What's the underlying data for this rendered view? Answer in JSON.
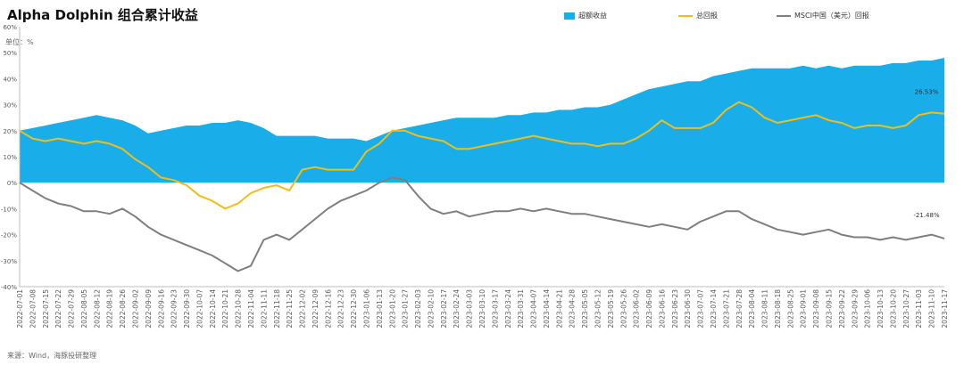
{
  "title": "Alpha Dolphin 组合累计收益",
  "unit": "单位：%",
  "source": "来源：Wind，海豚投研整理",
  "colors": {
    "excess": "#19AEEA",
    "total": "#F2BE14",
    "msci": "#7F7F7F",
    "axis": "#BFBFBF",
    "text": "#595959"
  },
  "chart_data": {
    "type": "area",
    "xlabel": "",
    "ylabel": "",
    "ylim": [
      -40,
      60
    ],
    "y_ticks": [
      -40,
      -30,
      -20,
      -10,
      0,
      10,
      20,
      30,
      40,
      50,
      60
    ],
    "y_tick_labels": [
      "-40%",
      "-30%",
      "-20%",
      "-10%",
      "0%",
      "10%",
      "20%",
      "30%",
      "40%",
      "50%",
      "60%"
    ],
    "x_labels": [
      "2022-07-01",
      "2022-07-08",
      "2022-07-15",
      "2022-07-22",
      "2022-07-29",
      "2022-08-05",
      "2022-08-12",
      "2022-08-19",
      "2022-08-26",
      "2022-09-02",
      "2022-09-09",
      "2022-09-16",
      "2022-09-23",
      "2022-09-30",
      "2022-10-07",
      "2022-10-14",
      "2022-10-21",
      "2022-10-28",
      "2022-11-04",
      "2022-11-11",
      "2022-11-18",
      "2022-11-25",
      "2022-12-02",
      "2022-12-09",
      "2022-12-16",
      "2022-12-23",
      "2022-12-30",
      "2023-01-06",
      "2023-01-13",
      "2023-01-20",
      "2023-01-27",
      "2023-02-03",
      "2023-02-10",
      "2023-02-17",
      "2023-02-24",
      "2023-03-03",
      "2023-03-10",
      "2023-03-17",
      "2023-03-24",
      "2023-03-31",
      "2023-04-07",
      "2023-04-14",
      "2023-04-21",
      "2023-04-28",
      "2023-05-05",
      "2023-05-12",
      "2023-05-19",
      "2023-05-26",
      "2023-06-02",
      "2023-06-09",
      "2023-06-16",
      "2023-06-23",
      "2023-06-30",
      "2023-07-07",
      "2023-07-14",
      "2023-07-21",
      "2023-07-28",
      "2023-08-04",
      "2023-08-11",
      "2023-08-18",
      "2023-08-25",
      "2023-09-01",
      "2023-09-08",
      "2023-09-15",
      "2023-09-22",
      "2023-09-29",
      "2023-10-06",
      "2023-10-13",
      "2023-10-20",
      "2023-10-27",
      "2023-11-03",
      "2023-11-10",
      "2023-11-17"
    ],
    "series": [
      {
        "name": "超额收益",
        "type": "area",
        "values": [
          20,
          21,
          22,
          23,
          24,
          25,
          26,
          25,
          24,
          22,
          19,
          20,
          21,
          22,
          22,
          23,
          23,
          24,
          23,
          21,
          18,
          18,
          18,
          18,
          17,
          17,
          17,
          16,
          18,
          20,
          21,
          22,
          23,
          24,
          25,
          25,
          25,
          25,
          26,
          26,
          27,
          27,
          28,
          28,
          29,
          29,
          30,
          32,
          34,
          36,
          37,
          38,
          39,
          39,
          41,
          42,
          43,
          44,
          44,
          44,
          44,
          45,
          44,
          45,
          44,
          45,
          45,
          45,
          46,
          46,
          47,
          47,
          48
        ]
      },
      {
        "name": "总回报",
        "type": "line",
        "values": [
          20,
          17,
          16,
          17,
          16,
          15,
          16,
          15,
          13,
          9,
          6,
          2,
          1,
          -1,
          -5,
          -7,
          -10,
          -8,
          -4,
          -2,
          -1,
          -3,
          5,
          6,
          5,
          5,
          5,
          12,
          15,
          20,
          20,
          18,
          17,
          16,
          13,
          13,
          14,
          15,
          16,
          17,
          18,
          17,
          16,
          15,
          15,
          14,
          15,
          15,
          17,
          20,
          24,
          21,
          21,
          21,
          23,
          28,
          31,
          29,
          25,
          23,
          24,
          25,
          26,
          24,
          23,
          21,
          22,
          22,
          21,
          22,
          26,
          27,
          26.53
        ]
      },
      {
        "name": "MSCI中国（美元）回报",
        "type": "line",
        "values": [
          0,
          -3,
          -6,
          -8,
          -9,
          -11,
          -11,
          -12,
          -10,
          -13,
          -17,
          -20,
          -22,
          -24,
          -26,
          -28,
          -31,
          -34,
          -32,
          -22,
          -20,
          -22,
          -18,
          -14,
          -10,
          -7,
          -5,
          -3,
          0,
          2,
          1,
          -5,
          -10,
          -12,
          -11,
          -13,
          -12,
          -11,
          -11,
          -10,
          -11,
          -10,
          -11,
          -12,
          -12,
          -13,
          -14,
          -15,
          -16,
          -17,
          -16,
          -17,
          -18,
          -15,
          -13,
          -11,
          -11,
          -14,
          -16,
          -18,
          -19,
          -20,
          -19,
          -18,
          -20,
          -21,
          -21,
          -22,
          -21,
          -22,
          -21,
          -20,
          -21.48
        ]
      }
    ],
    "annotations": [
      {
        "series": "总回报",
        "text": "26.53%"
      },
      {
        "series": "MSCI中国（美元）回报",
        "text": "-21.48%"
      }
    ],
    "legend_position": "top",
    "grid": false
  }
}
